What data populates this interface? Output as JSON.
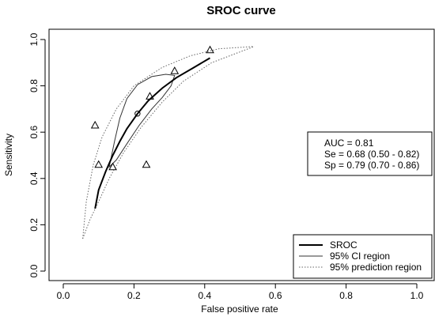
{
  "chart_data": {
    "type": "line",
    "title": "SROC curve",
    "xlabel": "False positive rate",
    "ylabel": "Sensitivity",
    "xlim": [
      0.0,
      1.0
    ],
    "ylim": [
      0.0,
      1.0
    ],
    "x_ticks": [
      "0.0",
      "0.2",
      "0.4",
      "0.6",
      "0.8",
      "1.0"
    ],
    "y_ticks": [
      "0.0",
      "0.2",
      "0.4",
      "0.6",
      "0.8",
      "1.0"
    ],
    "grid": false,
    "studies": [
      {
        "x": 0.09,
        "y": 0.63
      },
      {
        "x": 0.1,
        "y": 0.46
      },
      {
        "x": 0.14,
        "y": 0.45
      },
      {
        "x": 0.235,
        "y": 0.46
      },
      {
        "x": 0.245,
        "y": 0.755
      },
      {
        "x": 0.315,
        "y": 0.865
      },
      {
        "x": 0.415,
        "y": 0.955
      }
    ],
    "summary_point": {
      "x": 0.21,
      "y": 0.68
    },
    "sroc_curve": [
      [
        0.09,
        0.27
      ],
      [
        0.1,
        0.35
      ],
      [
        0.12,
        0.43
      ],
      [
        0.14,
        0.5
      ],
      [
        0.16,
        0.56
      ],
      [
        0.18,
        0.615
      ],
      [
        0.21,
        0.68
      ],
      [
        0.24,
        0.735
      ],
      [
        0.28,
        0.79
      ],
      [
        0.32,
        0.835
      ],
      [
        0.37,
        0.88
      ],
      [
        0.415,
        0.92
      ]
    ],
    "ci_region": [
      [
        0.13,
        0.45
      ],
      [
        0.145,
        0.56
      ],
      [
        0.16,
        0.66
      ],
      [
        0.18,
        0.745
      ],
      [
        0.21,
        0.805
      ],
      [
        0.25,
        0.84
      ],
      [
        0.29,
        0.85
      ],
      [
        0.315,
        0.845
      ],
      [
        0.305,
        0.8
      ],
      [
        0.28,
        0.75
      ],
      [
        0.25,
        0.7
      ],
      [
        0.215,
        0.63
      ],
      [
        0.18,
        0.55
      ],
      [
        0.15,
        0.48
      ],
      [
        0.13,
        0.45
      ]
    ],
    "prediction_region_upper": [
      [
        0.055,
        0.14
      ],
      [
        0.065,
        0.3
      ],
      [
        0.085,
        0.46
      ],
      [
        0.11,
        0.58
      ],
      [
        0.15,
        0.7
      ],
      [
        0.2,
        0.8
      ],
      [
        0.28,
        0.88
      ],
      [
        0.36,
        0.93
      ],
      [
        0.44,
        0.96
      ],
      [
        0.54,
        0.97
      ]
    ],
    "prediction_region_lower": [
      [
        0.055,
        0.14
      ],
      [
        0.075,
        0.22
      ],
      [
        0.1,
        0.3
      ],
      [
        0.13,
        0.4
      ],
      [
        0.17,
        0.51
      ],
      [
        0.22,
        0.62
      ],
      [
        0.28,
        0.73
      ],
      [
        0.34,
        0.82
      ],
      [
        0.42,
        0.9
      ],
      [
        0.54,
        0.97
      ]
    ],
    "stats": [
      "AUC = 0.81",
      "Se = 0.68 (0.50 - 0.82)",
      "Sp = 0.79 (0.70 - 0.86)"
    ],
    "legend": {
      "position": "bottom-right",
      "entries": [
        {
          "label": "SROC",
          "style": "thick-solid"
        },
        {
          "label": "95% CI region",
          "style": "thin-solid"
        },
        {
          "label": "95% prediction region",
          "style": "dotted"
        }
      ]
    }
  }
}
